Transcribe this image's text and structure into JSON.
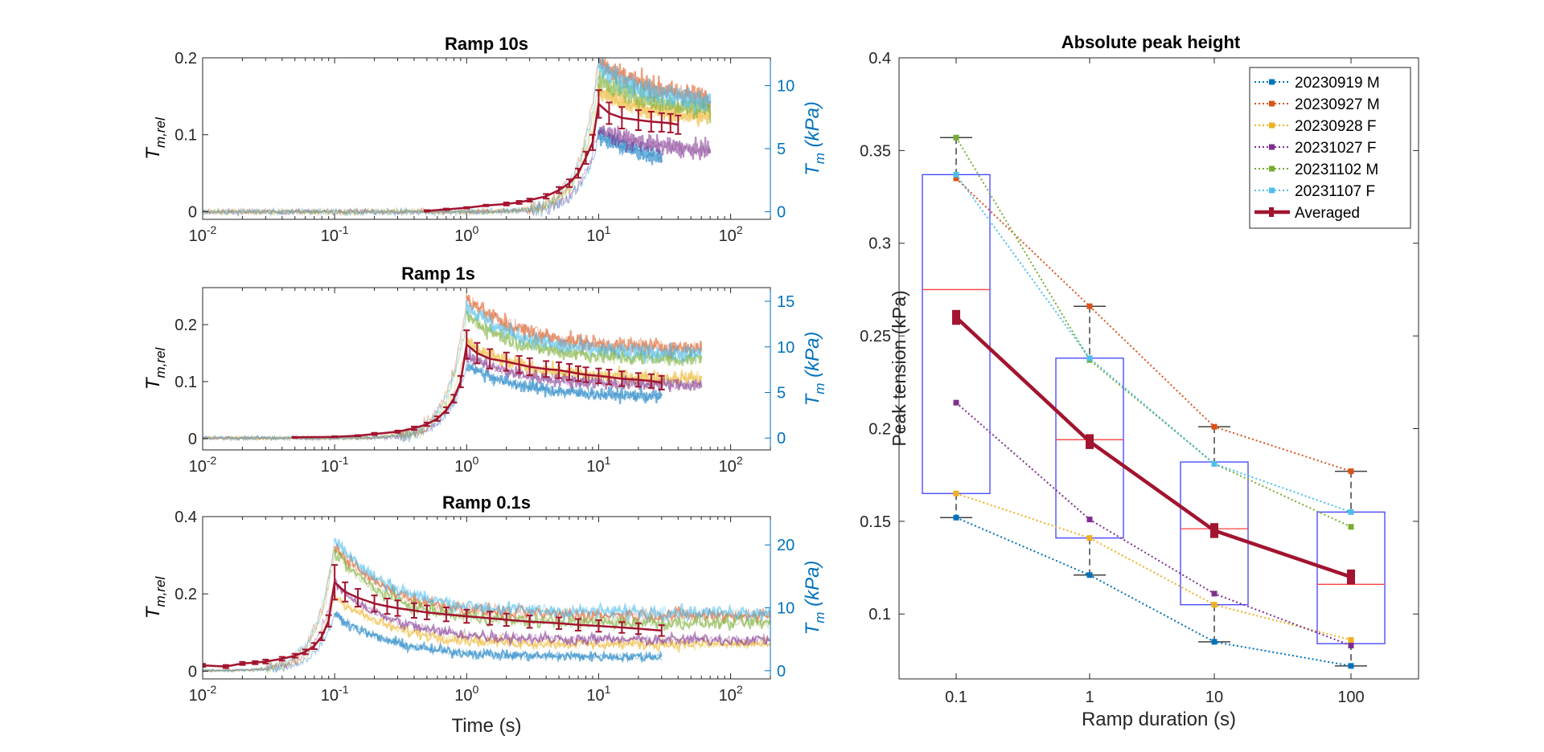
{
  "colors": {
    "avg": "#A2142F",
    "left_axis": "#262626",
    "right_axis": "#0072BD",
    "box": "#4040FF",
    "median": "#FF4040",
    "whisker": "#404040",
    "series": [
      "#0072BD",
      "#D95319",
      "#EDB120",
      "#7E2F8E",
      "#77AC30",
      "#4DBEEE"
    ]
  },
  "chart_data": [
    {
      "type": "line",
      "title": "Ramp 10s",
      "x_scale": "log",
      "xlim": [
        0.01,
        200
      ],
      "ylim": [
        -0.01,
        0.2
      ],
      "y_ticks": [
        "0",
        "0.1",
        "0.2"
      ],
      "y_tick_values": [
        0,
        0.1,
        0.2
      ],
      "y2lim": [
        -0.6,
        12.2
      ],
      "y2_ticks": [
        "0",
        "5",
        "10"
      ],
      "y2_tick_values": [
        0,
        5,
        10
      ],
      "x_ticks": [
        {
          "b": "10",
          "e": "-2"
        },
        {
          "b": "10",
          "e": "-1"
        },
        {
          "b": "10",
          "e": "0"
        },
        {
          "b": "10",
          "e": "1"
        },
        {
          "b": "10",
          "e": "2"
        }
      ],
      "x_tick_values": [
        0.01,
        0.1,
        1,
        10,
        100
      ],
      "ylabel": {
        "main": "T",
        "sub": "m,rel"
      },
      "y2label": {
        "main": "T",
        "sub": "m",
        "rest": " (kPa)"
      },
      "xlabel": "",
      "ramp": 10,
      "end_time": 40,
      "peak": 0.14,
      "plateau": 0.115,
      "avg_x": [
        0.5,
        0.7,
        1,
        1.4,
        2,
        2.5,
        3,
        4,
        5,
        6,
        7,
        8,
        9,
        10,
        12,
        15,
        20,
        25,
        30,
        35,
        40
      ],
      "avg_y": [
        0.001,
        0.003,
        0.005,
        0.008,
        0.01,
        0.012,
        0.015,
        0.02,
        0.028,
        0.037,
        0.05,
        0.07,
        0.09,
        0.14,
        0.128,
        0.122,
        0.119,
        0.117,
        0.116,
        0.115,
        0.113
      ],
      "avg_err": [
        0.001,
        0.001,
        0.001,
        0.001,
        0.002,
        0.002,
        0.002,
        0.003,
        0.004,
        0.005,
        0.006,
        0.008,
        0.01,
        0.018,
        0.014,
        0.014,
        0.013,
        0.013,
        0.012,
        0.012,
        0.012
      ],
      "traces": [
        {
          "peak": 6.0,
          "plateau": 3.6,
          "end": 30
        },
        {
          "peak": 12.0,
          "plateau": 8.6,
          "end": 70
        },
        {
          "peak": 9.5,
          "plateau": 7.2,
          "end": 70
        },
        {
          "peak": 6.5,
          "plateau": 4.6,
          "end": 70
        },
        {
          "peak": 10.5,
          "plateau": 7.8,
          "end": 70
        },
        {
          "peak": 11.5,
          "plateau": 8.3,
          "end": 70
        }
      ]
    },
    {
      "type": "line",
      "title": "Ramp 1s",
      "x_scale": "log",
      "xlim": [
        0.01,
        200
      ],
      "ylim": [
        -0.02,
        0.265
      ],
      "y_ticks": [
        "0",
        "0.1",
        "0.2"
      ],
      "y_tick_values": [
        0,
        0.1,
        0.2
      ],
      "y2lim": [
        -1.3,
        16.5
      ],
      "y2_ticks": [
        "0",
        "5",
        "10",
        "15"
      ],
      "y2_tick_values": [
        0,
        5,
        10,
        15
      ],
      "x_ticks": [
        {
          "b": "10",
          "e": "-2"
        },
        {
          "b": "10",
          "e": "-1"
        },
        {
          "b": "10",
          "e": "0"
        },
        {
          "b": "10",
          "e": "1"
        },
        {
          "b": "10",
          "e": "2"
        }
      ],
      "x_tick_values": [
        0.01,
        0.1,
        1,
        10,
        100
      ],
      "ylabel": {
        "main": "T",
        "sub": "m,rel"
      },
      "y2label": {
        "main": "T",
        "sub": "m",
        "rest": " (kPa)"
      },
      "xlabel": "",
      "ramp": 1,
      "end_time": 30,
      "peak": 0.165,
      "plateau": 0.1,
      "avg_x": [
        0.05,
        0.1,
        0.15,
        0.2,
        0.3,
        0.4,
        0.5,
        0.6,
        0.7,
        0.8,
        0.9,
        1.0,
        1.2,
        1.5,
        2,
        2.5,
        3,
        4,
        5,
        6,
        7,
        8,
        10,
        12,
        15,
        20,
        25,
        30
      ],
      "avg_y": [
        0.002,
        0.003,
        0.005,
        0.008,
        0.012,
        0.018,
        0.025,
        0.035,
        0.05,
        0.07,
        0.1,
        0.165,
        0.15,
        0.14,
        0.135,
        0.13,
        0.126,
        0.122,
        0.12,
        0.117,
        0.114,
        0.112,
        0.11,
        0.108,
        0.105,
        0.103,
        0.101,
        0.098
      ],
      "avg_err": [
        0.001,
        0.001,
        0.001,
        0.002,
        0.002,
        0.003,
        0.003,
        0.004,
        0.005,
        0.007,
        0.01,
        0.025,
        0.018,
        0.017,
        0.016,
        0.015,
        0.015,
        0.014,
        0.014,
        0.014,
        0.013,
        0.013,
        0.013,
        0.013,
        0.013,
        0.012,
        0.012,
        0.012
      ],
      "traces": [
        {
          "peak": 8.0,
          "plateau": 4.5,
          "end": 30
        },
        {
          "peak": 15.5,
          "plateau": 9.8,
          "end": 60
        },
        {
          "peak": 10.5,
          "plateau": 6.5,
          "end": 60
        },
        {
          "peak": 9.0,
          "plateau": 5.8,
          "end": 60
        },
        {
          "peak": 13.5,
          "plateau": 8.6,
          "end": 60
        },
        {
          "peak": 14.5,
          "plateau": 9.2,
          "end": 60
        }
      ]
    },
    {
      "type": "line",
      "title": "Ramp 0.1s",
      "x_scale": "log",
      "xlim": [
        0.01,
        200
      ],
      "ylim": [
        -0.02,
        0.4
      ],
      "y_ticks": [
        "0",
        "0.2",
        "0.4"
      ],
      "y_tick_values": [
        0,
        0.2,
        0.4
      ],
      "y2lim": [
        -1.3,
        24.5
      ],
      "y2_ticks": [
        "0",
        "10",
        "20"
      ],
      "y2_tick_values": [
        0,
        10,
        20
      ],
      "x_ticks": [
        {
          "b": "10",
          "e": "-2"
        },
        {
          "b": "10",
          "e": "-1"
        },
        {
          "b": "10",
          "e": "0"
        },
        {
          "b": "10",
          "e": "1"
        },
        {
          "b": "10",
          "e": "2"
        }
      ],
      "x_tick_values": [
        0.01,
        0.1,
        1,
        10,
        100
      ],
      "ylabel": {
        "main": "T",
        "sub": "m,rel"
      },
      "y2label": {
        "main": "T",
        "sub": "m",
        "rest": " (kPa)"
      },
      "xlabel": "Time (s)",
      "ramp": 0.1,
      "end_time": 30,
      "peak": 0.23,
      "plateau": 0.105,
      "avg_x": [
        0.01,
        0.015,
        0.02,
        0.025,
        0.03,
        0.04,
        0.05,
        0.06,
        0.07,
        0.08,
        0.09,
        0.1,
        0.12,
        0.15,
        0.2,
        0.25,
        0.3,
        0.4,
        0.5,
        0.7,
        1,
        1.5,
        2,
        3,
        5,
        7,
        10,
        15,
        20,
        30
      ],
      "avg_y": [
        0.015,
        0.012,
        0.02,
        0.022,
        0.025,
        0.032,
        0.04,
        0.05,
        0.065,
        0.09,
        0.13,
        0.23,
        0.205,
        0.19,
        0.175,
        0.168,
        0.163,
        0.157,
        0.152,
        0.147,
        0.142,
        0.137,
        0.133,
        0.128,
        0.124,
        0.12,
        0.117,
        0.113,
        0.11,
        0.105
      ],
      "avg_err": [
        0.004,
        0.004,
        0.004,
        0.004,
        0.005,
        0.005,
        0.005,
        0.006,
        0.008,
        0.01,
        0.015,
        0.045,
        0.025,
        0.023,
        0.021,
        0.02,
        0.02,
        0.019,
        0.018,
        0.018,
        0.017,
        0.017,
        0.016,
        0.016,
        0.015,
        0.015,
        0.015,
        0.014,
        0.014,
        0.014
      ],
      "traces": [
        {
          "peak": 9.0,
          "plateau": 2.2,
          "end": 30
        },
        {
          "peak": 20.0,
          "plateau": 8.8,
          "end": 200
        },
        {
          "peak": 12.0,
          "plateau": 4.2,
          "end": 200
        },
        {
          "peak": 14.0,
          "plateau": 4.9,
          "end": 200
        },
        {
          "peak": 19.0,
          "plateau": 7.6,
          "end": 200
        },
        {
          "peak": 21.0,
          "plateau": 9.3,
          "end": 200
        }
      ]
    },
    {
      "type": "box",
      "title": "Absolute peak height",
      "xlabel": "Ramp duration (s)",
      "ylabel": "Peak tension (kPa)",
      "categories": [
        "0.1",
        "1",
        "10",
        "100"
      ],
      "ylim": [
        0.065,
        0.4
      ],
      "y_ticks": [
        "0.1",
        "0.15",
        "0.2",
        "0.25",
        "0.3",
        "0.35",
        "0.4"
      ],
      "y_tick_values": [
        0.1,
        0.15,
        0.2,
        0.25,
        0.3,
        0.35,
        0.4
      ],
      "series": [
        {
          "name": "20230919 M",
          "values": [
            0.152,
            0.121,
            0.085,
            0.072
          ]
        },
        {
          "name": "20230927 M",
          "values": [
            0.335,
            0.266,
            0.201,
            0.177
          ]
        },
        {
          "name": "20230928 F",
          "values": [
            0.165,
            0.141,
            0.105,
            0.086
          ]
        },
        {
          "name": "20231027 F",
          "values": [
            0.214,
            0.151,
            0.111,
            0.083
          ]
        },
        {
          "name": "20231102 M",
          "values": [
            0.357,
            0.237,
            0.181,
            0.147
          ]
        },
        {
          "name": "20231107 F",
          "values": [
            0.337,
            0.238,
            0.181,
            0.155
          ]
        }
      ],
      "averaged": {
        "name": "Averaged",
        "values": [
          0.26,
          0.193,
          0.145,
          0.12
        ],
        "err": [
          0.004,
          0.004,
          0.004,
          0.004
        ]
      },
      "boxes": [
        {
          "q1": 0.165,
          "median": 0.275,
          "q3": 0.337,
          "min": 0.152,
          "max": 0.357
        },
        {
          "q1": 0.141,
          "median": 0.194,
          "q3": 0.238,
          "min": 0.121,
          "max": 0.266
        },
        {
          "q1": 0.105,
          "median": 0.146,
          "q3": 0.182,
          "min": 0.085,
          "max": 0.201
        },
        {
          "q1": 0.084,
          "median": 0.116,
          "q3": 0.155,
          "min": 0.072,
          "max": 0.177
        }
      ],
      "legend_position": "top-right"
    }
  ]
}
